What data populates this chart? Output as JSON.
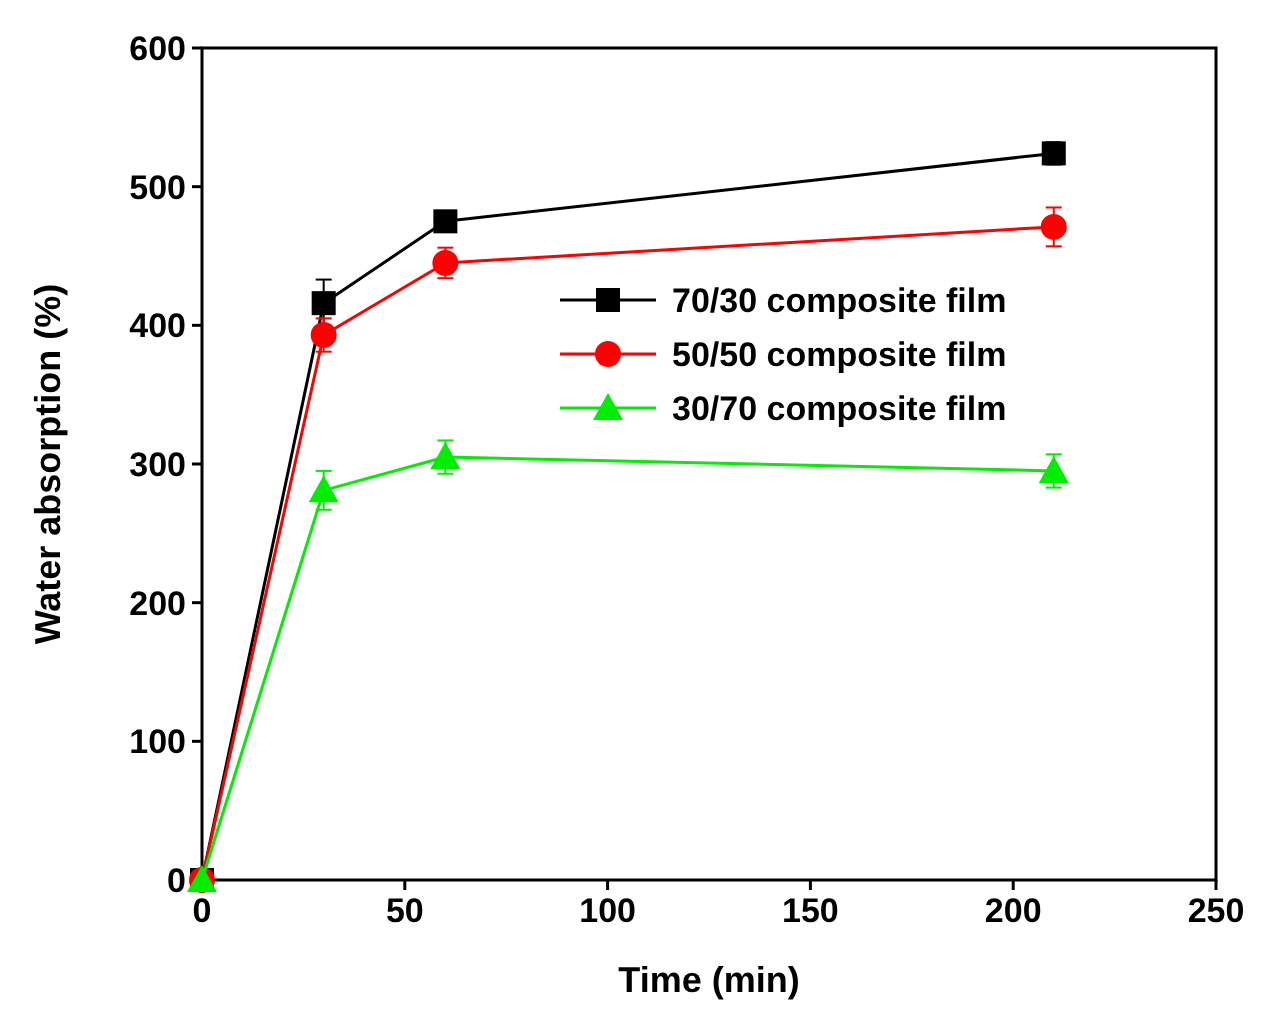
{
  "chart_data": {
    "type": "line",
    "xlabel": "Time (min)",
    "ylabel": "Water absorption (%)",
    "x": [
      0,
      30,
      60,
      210
    ],
    "xlim": [
      0,
      250
    ],
    "xticks": [
      0,
      50,
      100,
      150,
      200,
      250
    ],
    "ylim": [
      0,
      600
    ],
    "yticks": [
      0,
      100,
      200,
      300,
      400,
      500,
      600
    ],
    "legend": "right",
    "grid": false,
    "line_style": "solid",
    "series": [
      {
        "name": "70/30 composite film",
        "color": "#000000",
        "marker": "square",
        "values": [
          0,
          416,
          475,
          524
        ],
        "errors": [
          null,
          17,
          5,
          8
        ]
      },
      {
        "name": "50/50 composite film",
        "color": "#ff0000",
        "marker": "circle",
        "values": [
          0,
          393,
          445,
          471
        ],
        "errors": [
          null,
          12,
          11,
          14
        ]
      },
      {
        "name": "30/70 composite film",
        "color": "#00ee00",
        "marker": "triangle",
        "values": [
          0,
          281,
          305,
          295
        ],
        "errors": [
          null,
          14,
          12,
          12
        ]
      }
    ]
  }
}
